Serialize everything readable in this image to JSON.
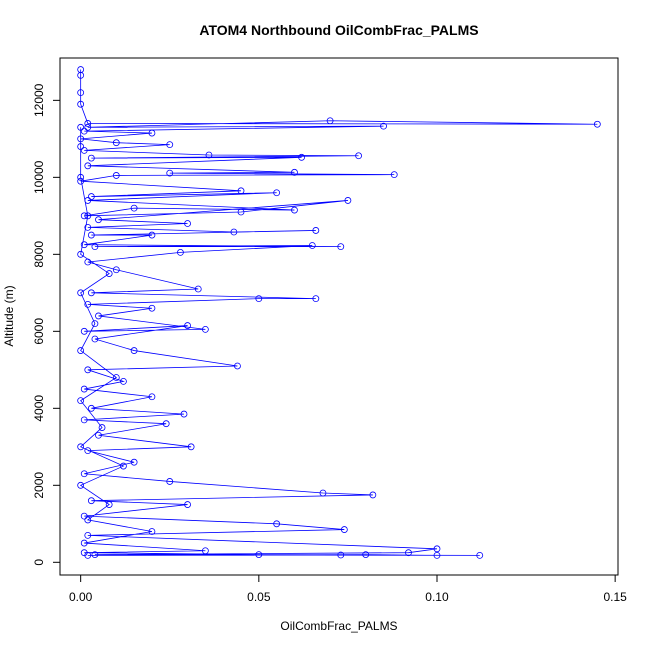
{
  "chart_data": {
    "type": "line",
    "title": "ATOM4 Northbound OilCombFrac_PALMS",
    "x_label": "OilCombFrac_PALMS",
    "y_label": "Altitude (m)",
    "color": "#0000ff",
    "x": [
      0,
      0,
      0,
      0,
      0.002,
      0.145,
      0.07,
      0.002,
      0.085,
      0.001,
      0.02,
      0,
      0.01,
      0.025,
      0.001,
      0.036,
      0.078,
      0.003,
      0.062,
      0.002,
      0.06,
      0.025,
      0.088,
      0.01,
      0,
      0.045,
      0.003,
      0.055,
      0.002,
      0.06,
      0.015,
      0.001,
      0.045,
      0.075,
      0.005,
      0.03,
      0.002,
      0.043,
      0.066,
      0.003,
      0.02,
      0.001,
      0.073,
      0.004,
      0.065,
      0.028,
      0.002,
      0.01,
      0.033,
      0.003,
      0.066,
      0.05,
      0.002,
      0.02,
      0.005,
      0.035,
      0.001,
      0.03,
      0.004,
      0.015,
      0.044,
      0.002,
      0.012,
      0.001,
      0.02,
      0.003,
      0.029,
      0.001,
      0.024,
      0.005,
      0.031,
      0.002,
      0.015,
      0.001,
      0.025,
      0.068,
      0.082,
      0.003,
      0.03,
      0.001,
      0.055,
      0.074,
      0.002,
      0.1,
      0.092,
      0.004,
      0.112,
      0.1,
      0.08,
      0.002,
      0.073,
      0.05,
      0.001,
      0.035,
      0.001,
      0.02,
      0.002,
      0.008,
      0,
      0.012,
      0,
      0.006,
      0,
      0.01,
      0,
      0.004,
      0,
      0.008,
      0,
      0.002,
      0,
      0,
      0
    ],
    "values": [
      12800,
      12650,
      12200,
      11900,
      11400,
      11380,
      11470,
      11300,
      11330,
      11200,
      11150,
      11000,
      10900,
      10850,
      10700,
      10580,
      10560,
      10500,
      10520,
      10300,
      10130,
      10110,
      10070,
      10050,
      9900,
      9650,
      9500,
      9600,
      9400,
      9150,
      9200,
      9000,
      9100,
      9400,
      8900,
      8800,
      8700,
      8580,
      8620,
      8500,
      8500,
      8250,
      8200,
      8200,
      8230,
      8050,
      7800,
      7600,
      7100,
      7000,
      6850,
      6850,
      6700,
      6600,
      6400,
      6050,
      6000,
      6150,
      5800,
      5500,
      5100,
      5000,
      4700,
      4500,
      4300,
      4000,
      3850,
      3700,
      3600,
      3300,
      3000,
      2900,
      2600,
      2300,
      2100,
      1800,
      1750,
      1600,
      1500,
      1200,
      1000,
      850,
      700,
      350,
      250,
      200,
      180,
      180,
      200,
      180,
      190,
      200,
      250,
      300,
      500,
      800,
      1100,
      1500,
      2000,
      2500,
      3000,
      3500,
      4200,
      4800,
      5500,
      6200,
      7000,
      7500,
      8000,
      9000,
      10000,
      10800,
      11300
    ],
    "xlim": [
      -0.0058,
      0.1508
    ],
    "xticks": [
      {
        "value": 0,
        "label": "0.00"
      },
      0.05,
      {
        "value": 0.1,
        "label": "0.10"
      },
      0.15
    ],
    "ylim": [
      -330,
      13100
    ],
    "yticks": [
      0,
      2000,
      4000,
      6000,
      8000,
      10000,
      12000
    ]
  }
}
